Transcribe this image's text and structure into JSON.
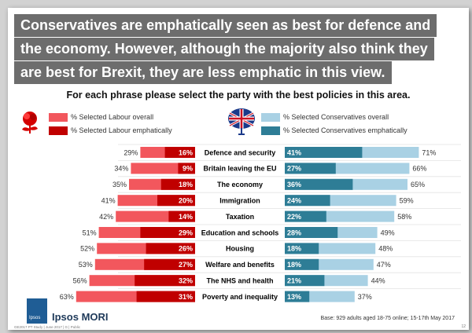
{
  "headline": {
    "line1": "Conservatives are emphatically seen as best for defence and",
    "line2": "the economy. However, although the majority also think they",
    "line3": "are best for Brexit, they are less emphatic in this view."
  },
  "subtitle": "For each phrase please select the party with the best policies in this area.",
  "legend": {
    "labour_overall": "% Selected Labour overall",
    "labour_emphatic": "% Selected Labour emphatically",
    "con_overall": "% Selected Conservatives overall",
    "con_emphatic": "% Selected Conservatives emphatically"
  },
  "colors": {
    "labour_overall": "#f2575d",
    "labour_emphatic": "#c00000",
    "con_overall": "#a9d1e4",
    "con_emphatic": "#2e7d96",
    "headline_bg": "#6d6d6d",
    "ipsos_blue": "#1f5d95"
  },
  "chart_data": {
    "type": "bar",
    "orientation": "horizontal-diverging",
    "title": "For each phrase please select the party with the best policies in this area.",
    "categories": [
      "Defence and security",
      "Britain leaving the EU",
      "The economy",
      "Immigration",
      "Taxation",
      "Education and schools",
      "Housing",
      "Welfare and benefits",
      "The NHS and health",
      "Poverty and inequality"
    ],
    "series": [
      {
        "name": "% Selected Labour overall",
        "values": [
          29,
          34,
          35,
          41,
          42,
          51,
          52,
          53,
          56,
          63
        ]
      },
      {
        "name": "% Selected Labour emphatically",
        "values": [
          16,
          9,
          18,
          20,
          14,
          29,
          26,
          27,
          32,
          31
        ]
      },
      {
        "name": "% Selected Conservatives overall",
        "values": [
          71,
          66,
          65,
          59,
          58,
          49,
          48,
          47,
          44,
          37
        ]
      },
      {
        "name": "% Selected Conservatives emphatically",
        "values": [
          41,
          27,
          36,
          24,
          22,
          28,
          18,
          18,
          21,
          13
        ]
      }
    ],
    "xlim": [
      0,
      100
    ],
    "value_suffix": "%"
  },
  "footer": {
    "brand": "Ipsos MORI",
    "logo_text": "Ipsos",
    "base": "Base: 929 adults aged 18-75 online; 15-17th May 2017",
    "left": "GE2017 PT Study | June 2017 | G | Public",
    "page": "12"
  }
}
